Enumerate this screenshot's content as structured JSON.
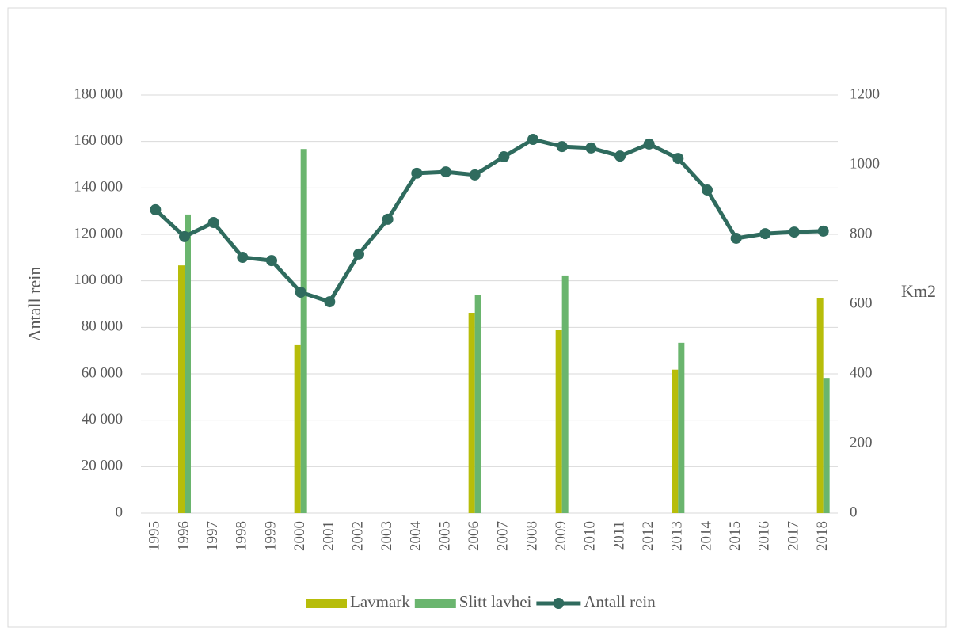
{
  "chart_data": {
    "type": "bar_line",
    "y_label": "Antall rein",
    "y2_label": "Km2",
    "categories": [
      "1995",
      "1996",
      "1997",
      "1998",
      "1999",
      "2000",
      "2001",
      "2002",
      "2003",
      "2004",
      "2005",
      "2006",
      "2007",
      "2008",
      "2009",
      "2010",
      "2011",
      "2012",
      "2013",
      "2014",
      "2015",
      "2016",
      "2017",
      "2018"
    ],
    "series": [
      {
        "name": "Lavmark",
        "color": "#b7bd0a",
        "type": "bar",
        "axis": "y2",
        "values": [
          null,
          711,
          null,
          null,
          null,
          482,
          null,
          null,
          null,
          null,
          null,
          575,
          null,
          null,
          525,
          null,
          null,
          null,
          412,
          null,
          null,
          null,
          null,
          618
        ]
      },
      {
        "name": "Slitt lavhei",
        "color": "#6ab56e",
        "type": "bar",
        "axis": "y2",
        "values": [
          null,
          857,
          null,
          null,
          null,
          1045,
          null,
          null,
          null,
          null,
          null,
          625,
          null,
          null,
          682,
          null,
          null,
          null,
          489,
          null,
          null,
          null,
          null,
          386
        ]
      },
      {
        "name": "Antall rein",
        "color": "#2f6b5e",
        "type": "line",
        "axis": "y",
        "values": [
          130600,
          119000,
          125100,
          110100,
          108700,
          95100,
          91000,
          111500,
          126500,
          146300,
          146900,
          145600,
          153400,
          160900,
          157800,
          157200,
          153700,
          158900,
          152700,
          139100,
          118300,
          120300,
          121000,
          121400
        ]
      }
    ],
    "ylim": [
      0,
      180000
    ],
    "yticks": [
      0,
      {
        "value": 20000,
        "label": "20 000"
      },
      {
        "value": 40000,
        "label": "40 000"
      },
      {
        "value": 60000,
        "label": "60 000"
      },
      {
        "value": 80000,
        "label": "80 000"
      },
      {
        "value": 100000,
        "label": "100 000"
      },
      {
        "value": 120000,
        "label": "120 000"
      },
      {
        "value": 140000,
        "label": "140 000"
      },
      {
        "value": 160000,
        "label": "160 000"
      },
      {
        "value": 180000,
        "label": "180 000"
      }
    ],
    "y2lim": [
      0,
      1200
    ],
    "y2ticks": [
      0,
      200,
      400,
      600,
      800,
      1000,
      1200
    ],
    "grid": true,
    "legend": "bottom"
  }
}
